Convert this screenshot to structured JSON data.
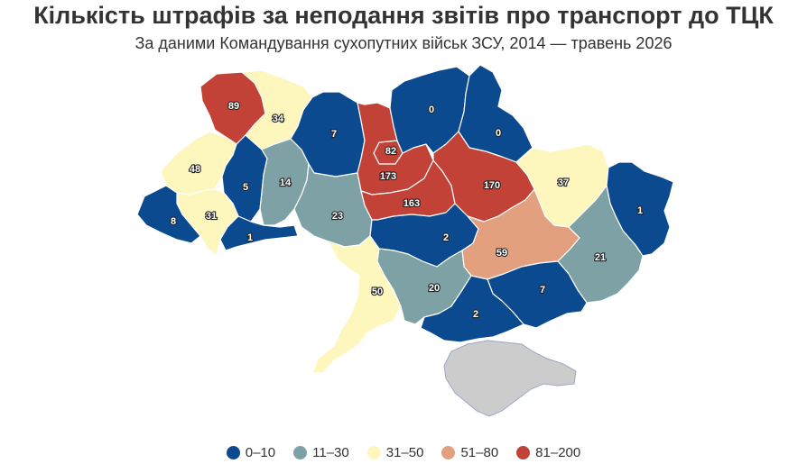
{
  "title": "Кількість штрафів за неподання звітів про транспорт до ТЦК",
  "subtitle": "За даними Командування сухопутних військ ЗСУ, 2014 — травень 2026",
  "legend": [
    {
      "label": "0–10",
      "color": "#0b4a8f"
    },
    {
      "label": "11–30",
      "color": "#7ea1a5"
    },
    {
      "label": "31–50",
      "color": "#fdf7bd"
    },
    {
      "label": "51–80",
      "color": "#e3a07e"
    },
    {
      "label": "81–200",
      "color": "#c24237"
    }
  ],
  "crimea_color": "#cccccc",
  "regions": [
    {
      "id": "volyn",
      "value": 89
    },
    {
      "id": "rivne",
      "value": 34
    },
    {
      "id": "lviv",
      "value": 48
    },
    {
      "id": "ternopil",
      "value": 5
    },
    {
      "id": "ivano-frankivsk",
      "value": 31
    },
    {
      "id": "zakarpattia",
      "value": 8
    },
    {
      "id": "chernivtsi",
      "value": 1
    },
    {
      "id": "khmelnytskyi",
      "value": 14
    },
    {
      "id": "zhytomyr",
      "value": 7
    },
    {
      "id": "kyiv-city",
      "value": 82
    },
    {
      "id": "kyiv-oblast",
      "value": 173
    },
    {
      "id": "vinnytsia",
      "value": 23
    },
    {
      "id": "chernihiv",
      "value": 0
    },
    {
      "id": "sumy",
      "value": 0
    },
    {
      "id": "cherkasy",
      "value": 163
    },
    {
      "id": "poltava",
      "value": 170
    },
    {
      "id": "kharkiv",
      "value": 37
    },
    {
      "id": "luhansk",
      "value": 1
    },
    {
      "id": "kirovohrad",
      "value": 2
    },
    {
      "id": "dnipropetrovsk",
      "value": 59
    },
    {
      "id": "donetsk",
      "value": 21
    },
    {
      "id": "odesa",
      "value": 50
    },
    {
      "id": "mykolaiv",
      "value": 20
    },
    {
      "id": "zaporizhzhia",
      "value": 7
    },
    {
      "id": "kherson",
      "value": 2
    }
  ]
}
